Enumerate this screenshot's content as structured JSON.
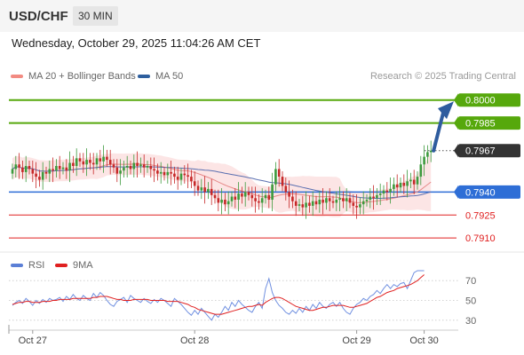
{
  "header": {
    "symbol": "USD/CHF",
    "timeframe": "30 MIN",
    "datetime": "Wednesday, October 29, 2025 11:04:26 AM CET"
  },
  "legend": {
    "items": [
      {
        "label": "MA 20 + Bollinger Bands",
        "color": "#f28b82"
      },
      {
        "label": "MA 50",
        "color": "#2e5f9e"
      }
    ],
    "credit": "Research © 2025 Trading Central"
  },
  "rsi_legend": {
    "items": [
      {
        "label": "RSI",
        "color": "#5b7fd6"
      },
      {
        "label": "9MA",
        "color": "#e02020"
      }
    ]
  },
  "chart_data": [
    {
      "type": "candlestick",
      "y_range": [
        0.7902,
        0.8012
      ],
      "x_range_label": "Oct 27 – Oct 30",
      "x_tick_labels": [
        {
          "label": "Oct 27",
          "index": 6
        },
        {
          "label": "Oct 28",
          "index": 54
        },
        {
          "label": "Oct 29",
          "index": 102
        },
        {
          "label": "Oct 30",
          "index": 122
        }
      ],
      "levels": [
        {
          "value": 0.8,
          "label": "0.8000",
          "kind": "target",
          "color": "#56a80c"
        },
        {
          "value": 0.7985,
          "label": "0.7985",
          "kind": "target",
          "color": "#56a80c"
        },
        {
          "value": 0.7967,
          "label": "0.7967",
          "kind": "last-price",
          "color": "#333333"
        },
        {
          "value": 0.794,
          "label": "0.7940",
          "kind": "pivot",
          "color": "#2e6ed6"
        },
        {
          "value": 0.7925,
          "label": "0.7925",
          "kind": "support",
          "color": "#e02020"
        },
        {
          "value": 0.791,
          "label": "0.7910",
          "kind": "support",
          "color": "#e02020"
        }
      ],
      "projection_arrow": {
        "from": 0.7967,
        "to": 0.7998
      },
      "closes": [
        0.7955,
        0.7958,
        0.7956,
        0.7953,
        0.7957,
        0.7955,
        0.7952,
        0.795,
        0.7948,
        0.7953,
        0.7952,
        0.7955,
        0.7954,
        0.7957,
        0.7955,
        0.7956,
        0.7954,
        0.7959,
        0.7957,
        0.7962,
        0.796,
        0.7958,
        0.7961,
        0.7959,
        0.7958,
        0.7962,
        0.796,
        0.7963,
        0.7961,
        0.7958,
        0.7956,
        0.7952,
        0.7954,
        0.7956,
        0.7957,
        0.7955,
        0.7959,
        0.7957,
        0.7958,
        0.7956,
        0.7957,
        0.7955,
        0.7954,
        0.7952,
        0.7953,
        0.7951,
        0.7953,
        0.7952,
        0.795,
        0.7948,
        0.7952,
        0.7951,
        0.795,
        0.7947,
        0.7944,
        0.7941,
        0.7943,
        0.794,
        0.7942,
        0.7938,
        0.7936,
        0.7933,
        0.7935,
        0.7932,
        0.7934,
        0.7937,
        0.7935,
        0.7939,
        0.7937,
        0.794,
        0.7938,
        0.7936,
        0.7934,
        0.7933,
        0.7936,
        0.7938,
        0.7935,
        0.7945,
        0.7955,
        0.795,
        0.7944,
        0.794,
        0.7937,
        0.7934,
        0.7931,
        0.7932,
        0.793,
        0.7933,
        0.7931,
        0.7934,
        0.7932,
        0.7935,
        0.7933,
        0.7936,
        0.7934,
        0.7933,
        0.7935,
        0.7936,
        0.7934,
        0.7936,
        0.7933,
        0.7931,
        0.793,
        0.7932,
        0.7934,
        0.7935,
        0.7937,
        0.7936,
        0.7938,
        0.7939,
        0.7941,
        0.794,
        0.7942,
        0.7945,
        0.7943,
        0.7946,
        0.7944,
        0.7947,
        0.7948,
        0.7945,
        0.795,
        0.7958,
        0.7963,
        0.7966,
        0.7967
      ]
    },
    {
      "type": "line",
      "name": "RSI",
      "y_range": [
        20,
        80
      ],
      "y_ticks": [
        70,
        50,
        30
      ],
      "values": [
        45,
        48,
        50,
        47,
        52,
        49,
        45,
        50,
        47,
        51,
        48,
        52,
        50,
        51,
        53,
        49,
        54,
        51,
        56,
        52,
        50,
        55,
        52,
        50,
        57,
        53,
        58,
        55,
        50,
        46,
        44,
        49,
        51,
        53,
        48,
        55,
        52,
        50,
        48,
        52,
        49,
        47,
        51,
        48,
        52,
        50,
        47,
        44,
        52,
        49,
        46,
        42,
        38,
        35,
        40,
        36,
        42,
        38,
        34,
        30,
        36,
        33,
        38,
        44,
        40,
        48,
        44,
        50,
        46,
        43,
        40,
        38,
        44,
        48,
        42,
        62,
        72,
        58,
        50,
        45,
        42,
        38,
        36,
        40,
        37,
        42,
        38,
        44,
        40,
        46,
        42,
        48,
        44,
        42,
        46,
        48,
        44,
        48,
        42,
        38,
        36,
        42,
        46,
        48,
        52,
        50,
        54,
        56,
        60,
        57,
        62,
        66,
        62,
        66,
        64,
        67,
        68,
        62,
        70,
        78,
        82,
        84,
        85
      ],
      "ma9_values": [
        46,
        47,
        48,
        48,
        49,
        49,
        48,
        48,
        48,
        49,
        49,
        49,
        50,
        50,
        51,
        51,
        51,
        51,
        52,
        52,
        52,
        52,
        52,
        52,
        53,
        53,
        54,
        54,
        54,
        53,
        52,
        51,
        51,
        50,
        50,
        50,
        51,
        51,
        51,
        51,
        51,
        50,
        50,
        50,
        50,
        50,
        49,
        49,
        49,
        49,
        48,
        47,
        46,
        44,
        43,
        41,
        40,
        39,
        38,
        37,
        36,
        36,
        36,
        37,
        38,
        39,
        40,
        41,
        42,
        43,
        44,
        44,
        45,
        46,
        45,
        48,
        50,
        52,
        53,
        53,
        52,
        50,
        48,
        46,
        44,
        43,
        42,
        41,
        40,
        40,
        41,
        42,
        43,
        43,
        44,
        45,
        45,
        45,
        45,
        44,
        43,
        43,
        44,
        45,
        46,
        47,
        49,
        51,
        53,
        54,
        56,
        58,
        59,
        60,
        62,
        63,
        64,
        65,
        66,
        68,
        70,
        73,
        76
      ]
    }
  ]
}
